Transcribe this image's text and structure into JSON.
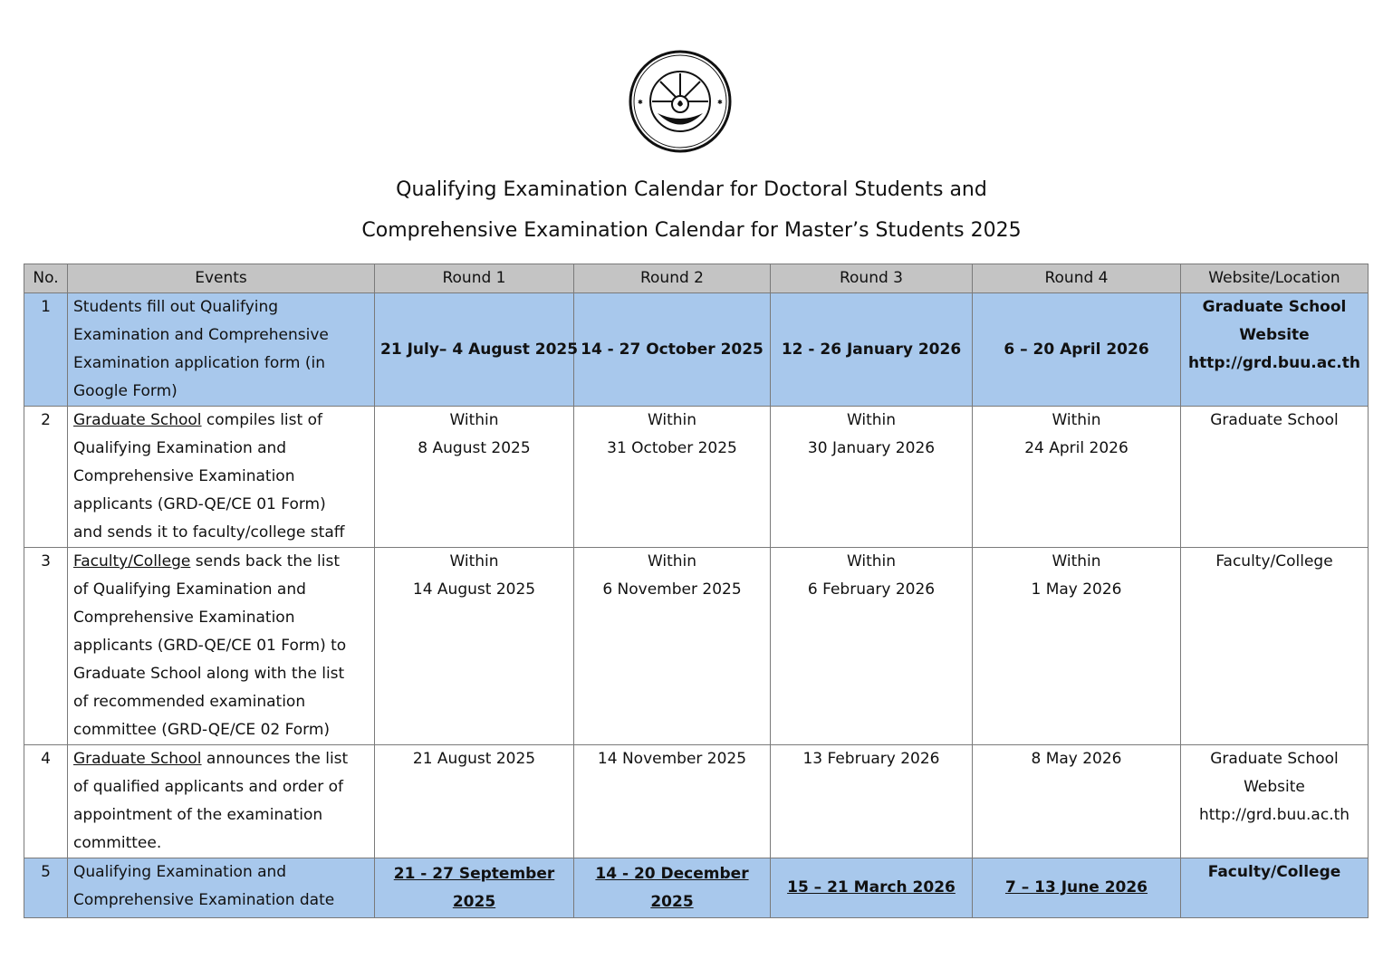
{
  "logo": {
    "text": "University seal (Burapha University)"
  },
  "title": [
    "Qualifying Examination Calendar for Doctoral Students and",
    "Comprehensive Examination Calendar for Master’s Students 2025"
  ],
  "headers": [
    "No.",
    "Events",
    "Round 1",
    "Round 2",
    "Round 3",
    "Round 4",
    "Website/Location"
  ],
  "rows": [
    {
      "no": "1",
      "event": [
        [
          "",
          "Students fill out Qualifying"
        ],
        [
          "",
          "Examination and Comprehensive"
        ],
        [
          "",
          "Examination application form (in"
        ],
        [
          "",
          "Google Form)"
        ]
      ],
      "rounds": [
        [
          "21 July– 4 August 2025"
        ],
        [
          "14 - 27 October 2025"
        ],
        [
          "12 - 26 January 2026"
        ],
        [
          "6 – 20 April 2026"
        ]
      ],
      "location": [
        "Graduate School",
        "Website",
        "http://grd.buu.ac.th"
      ]
    },
    {
      "no": "2",
      "event": [
        [
          "Graduate School",
          " compiles list of"
        ],
        [
          "",
          "Qualifying Examination and"
        ],
        [
          "",
          "Comprehensive Examination"
        ],
        [
          "",
          "applicants (GRD-QE/CE 01 Form)"
        ],
        [
          "",
          "and sends it to faculty/college staff"
        ]
      ],
      "rounds": [
        [
          "Within",
          "8 August 2025"
        ],
        [
          "Within",
          "31 October 2025"
        ],
        [
          "Within",
          "30 January 2026"
        ],
        [
          "Within",
          "24 April 2026"
        ]
      ],
      "location": [
        "Graduate School"
      ]
    },
    {
      "no": "3",
      "event": [
        [
          "Faculty/College",
          " sends back the list"
        ],
        [
          "",
          "of Qualifying Examination and"
        ],
        [
          "",
          "Comprehensive Examination"
        ],
        [
          "",
          "applicants (GRD-QE/CE 01 Form) to"
        ],
        [
          "",
          "Graduate School along with the list"
        ],
        [
          "",
          "of recommended examination"
        ],
        [
          "",
          "committee (GRD-QE/CE 02 Form)"
        ]
      ],
      "rounds": [
        [
          "Within",
          "14 August 2025"
        ],
        [
          "Within",
          "6 November 2025"
        ],
        [
          "Within",
          "6 February 2026"
        ],
        [
          "Within",
          "1 May 2026"
        ]
      ],
      "location": [
        "Faculty/College"
      ]
    },
    {
      "no": "4",
      "event": [
        [
          "Graduate School",
          " announces the list"
        ],
        [
          "",
          "of qualified applicants and order of"
        ],
        [
          "",
          "appointment of the examination"
        ],
        [
          "",
          "committee."
        ]
      ],
      "rounds": [
        [
          "21 August 2025"
        ],
        [
          "14 November 2025"
        ],
        [
          "13 February 2026"
        ],
        [
          "8 May 2026"
        ]
      ],
      "location": [
        "Graduate School",
        "Website",
        "http://grd.buu.ac.th"
      ]
    },
    {
      "no": "5",
      "event": [
        [
          "",
          "Qualifying Examination and"
        ],
        [
          "",
          "Comprehensive Examination date"
        ]
      ],
      "rounds": [
        [
          "21 - 27 September",
          "2025"
        ],
        [
          "14 - 20 December",
          "2025"
        ],
        [
          "15 – 21 March 2026"
        ],
        [
          "7 – 13 June 2026"
        ]
      ],
      "location": [
        "Faculty/College"
      ]
    }
  ],
  "colors": {
    "header_bg": "#c4c4c4",
    "highlight_bg": "#a8c8ec"
  }
}
